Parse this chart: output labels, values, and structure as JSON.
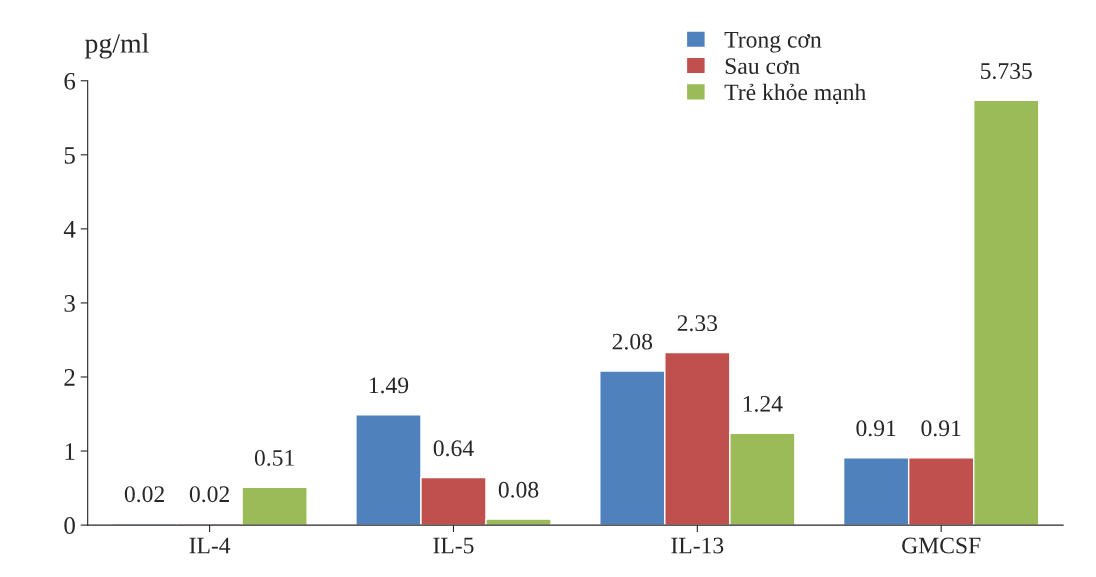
{
  "chart_data": {
    "type": "bar",
    "ylabel": "pg/ml",
    "categories": [
      "IL-4",
      "IL-5",
      "IL-13",
      "GMCSF"
    ],
    "series": [
      {
        "name": "Trong cơn",
        "color": "#4f81bd",
        "values": [
          0.02,
          1.49,
          2.08,
          0.91
        ]
      },
      {
        "name": "Sau cơn",
        "color": "#c0504d",
        "values": [
          0.02,
          0.64,
          2.33,
          0.91
        ]
      },
      {
        "name": "Trẻ khỏe mạnh",
        "color": "#9bbb59",
        "values": [
          0.51,
          0.08,
          1.24,
          5.735
        ]
      }
    ],
    "ylim": [
      0,
      6
    ],
    "yticks": [
      0,
      1,
      2,
      3,
      4,
      5,
      6
    ],
    "grid": false,
    "legend": "top right",
    "data_labels": true
  }
}
